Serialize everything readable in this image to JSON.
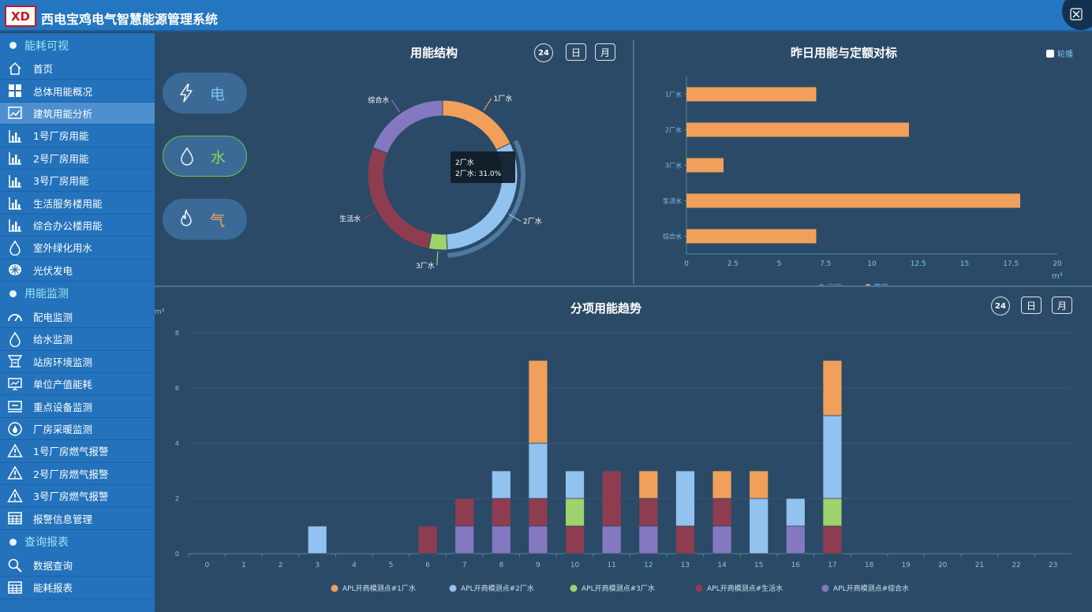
{
  "header": {
    "logo_text": "XD",
    "title": "西电宝鸡电气智慧能源管理系统"
  },
  "sidebar": {
    "sec1": "能耗可视",
    "items1": [
      {
        "label": "首页",
        "icon": "home-icon"
      },
      {
        "label": "总体用能概况",
        "icon": "grid-icon"
      },
      {
        "label": "建筑用能分析",
        "icon": "chart-icon"
      },
      {
        "label": "1号厂房用能",
        "icon": "bar-icon"
      },
      {
        "label": "2号厂房用能",
        "icon": "bar-icon"
      },
      {
        "label": "3号厂房用能",
        "icon": "bar-icon"
      },
      {
        "label": "生活服务楼用能",
        "icon": "bar-icon"
      },
      {
        "label": "综合办公楼用能",
        "icon": "bar-icon"
      },
      {
        "label": "室外绿化用水",
        "icon": "drop-icon"
      },
      {
        "label": "光伏发电",
        "icon": "solar-icon"
      }
    ],
    "sec2": "用能监测",
    "items2": [
      {
        "label": "配电监测",
        "icon": "gauge-icon"
      },
      {
        "label": "给水监测",
        "icon": "drop-icon"
      },
      {
        "label": "站房环境监测",
        "icon": "station-icon"
      },
      {
        "label": "单位产值能耗",
        "icon": "monitor-icon"
      },
      {
        "label": "重点设备监测",
        "icon": "device-icon"
      },
      {
        "label": "厂房采暖监测",
        "icon": "flame-icon"
      },
      {
        "label": "1号厂房燃气报警",
        "icon": "warning-icon"
      },
      {
        "label": "2号厂房燃气报警",
        "icon": "warning-icon"
      },
      {
        "label": "3号厂房燃气报警",
        "icon": "warning-icon"
      },
      {
        "label": "报警信息管理",
        "icon": "table-icon"
      }
    ],
    "sec3": "查询报表",
    "items3": [
      {
        "label": "数据查询",
        "icon": "search-icon"
      },
      {
        "label": "能耗报表",
        "icon": "table-icon"
      }
    ]
  },
  "energy_buttons": {
    "electric": "电",
    "water": "水",
    "gas": "气"
  },
  "structure": {
    "title": "用能结构",
    "btn_24": "24",
    "btn_day": "日",
    "btn_month": "月",
    "tooltip_line1": "2厂水",
    "tooltip_line2": "2厂水: 31.0%",
    "colors": {
      "orange": "#f0a05a",
      "blue": "#92c2ee",
      "green": "#9ed36c",
      "maroon": "#8e3c50",
      "purple": "#8479c0"
    }
  },
  "quota": {
    "title": "昨日用能与定额对标",
    "checkbox_label": "轮播",
    "legend_quota": "定额",
    "legend_yesterday": "昨日",
    "unit": "m³"
  },
  "trend": {
    "title": "分项用能趋势",
    "unit": "m³",
    "btn_24": "24",
    "btn_day": "日",
    "btn_month": "月"
  },
  "chart_data": [
    {
      "type": "pie",
      "title": "用能结构",
      "labels": [
        "1厂水",
        "2厂水",
        "3厂水",
        "生活水",
        "综合水"
      ],
      "values": [
        18.0,
        31.0,
        4.0,
        28.0,
        19.0
      ],
      "tooltip": "2厂水: 31.0%"
    },
    {
      "type": "bar",
      "orientation": "horizontal",
      "title": "昨日用能与定额对标",
      "categories": [
        "1厂水",
        "2厂水",
        "3厂水",
        "生活水",
        "综合水"
      ],
      "series": [
        {
          "name": "定额",
          "values": [
            0,
            0,
            0,
            0,
            0
          ]
        },
        {
          "name": "昨日",
          "values": [
            7,
            12,
            2,
            18,
            7
          ]
        }
      ],
      "xlim": [
        0,
        20
      ],
      "xticks": [
        "0",
        "2.5",
        "5",
        "7.5",
        "10",
        "12.5",
        "15",
        "17.5",
        "20"
      ],
      "unit": "m³"
    },
    {
      "type": "bar",
      "stacked": true,
      "title": "分项用能趋势",
      "x": [
        0,
        1,
        2,
        3,
        4,
        5,
        6,
        7,
        8,
        9,
        10,
        11,
        12,
        13,
        14,
        15,
        16,
        17,
        18,
        19,
        20,
        21,
        22,
        23
      ],
      "ylim": [
        0,
        8
      ],
      "yticks": [
        "0",
        "2",
        "4",
        "6",
        "8"
      ],
      "ylabel": "m³",
      "series": [
        {
          "name": "APL开商模测点#综合水",
          "values": [
            0,
            0,
            0,
            0,
            0,
            0,
            0,
            1,
            1,
            1,
            0,
            1,
            1,
            0,
            1,
            0,
            1,
            0,
            0,
            0,
            0,
            0,
            0,
            0
          ]
        },
        {
          "name": "APL开商模测点#生活水",
          "values": [
            0,
            0,
            0,
            0,
            0,
            0,
            1,
            1,
            1,
            1,
            1,
            2,
            1,
            1,
            1,
            0,
            0,
            1,
            0,
            0,
            0,
            0,
            0,
            0
          ]
        },
        {
          "name": "APL开商模测点#3厂水",
          "values": [
            0,
            0,
            0,
            0,
            0,
            0,
            0,
            0,
            0,
            0,
            1,
            0,
            0,
            0,
            0,
            0,
            0,
            1,
            0,
            0,
            0,
            0,
            0,
            0
          ]
        },
        {
          "name": "APL开商模测点#2厂水",
          "values": [
            0,
            0,
            0,
            1,
            0,
            0,
            0,
            0,
            1,
            2,
            1,
            0,
            0,
            2,
            0,
            2,
            1,
            3,
            0,
            0,
            0,
            0,
            0,
            0
          ]
        },
        {
          "name": "APL开商模测点#1厂水",
          "values": [
            0,
            0,
            0,
            0,
            0,
            0,
            0,
            0,
            0,
            3,
            0,
            0,
            1,
            0,
            1,
            1,
            0,
            2,
            0,
            0,
            0,
            0,
            0,
            0
          ]
        }
      ],
      "legend_order": [
        4,
        3,
        2,
        1,
        0
      ]
    }
  ]
}
